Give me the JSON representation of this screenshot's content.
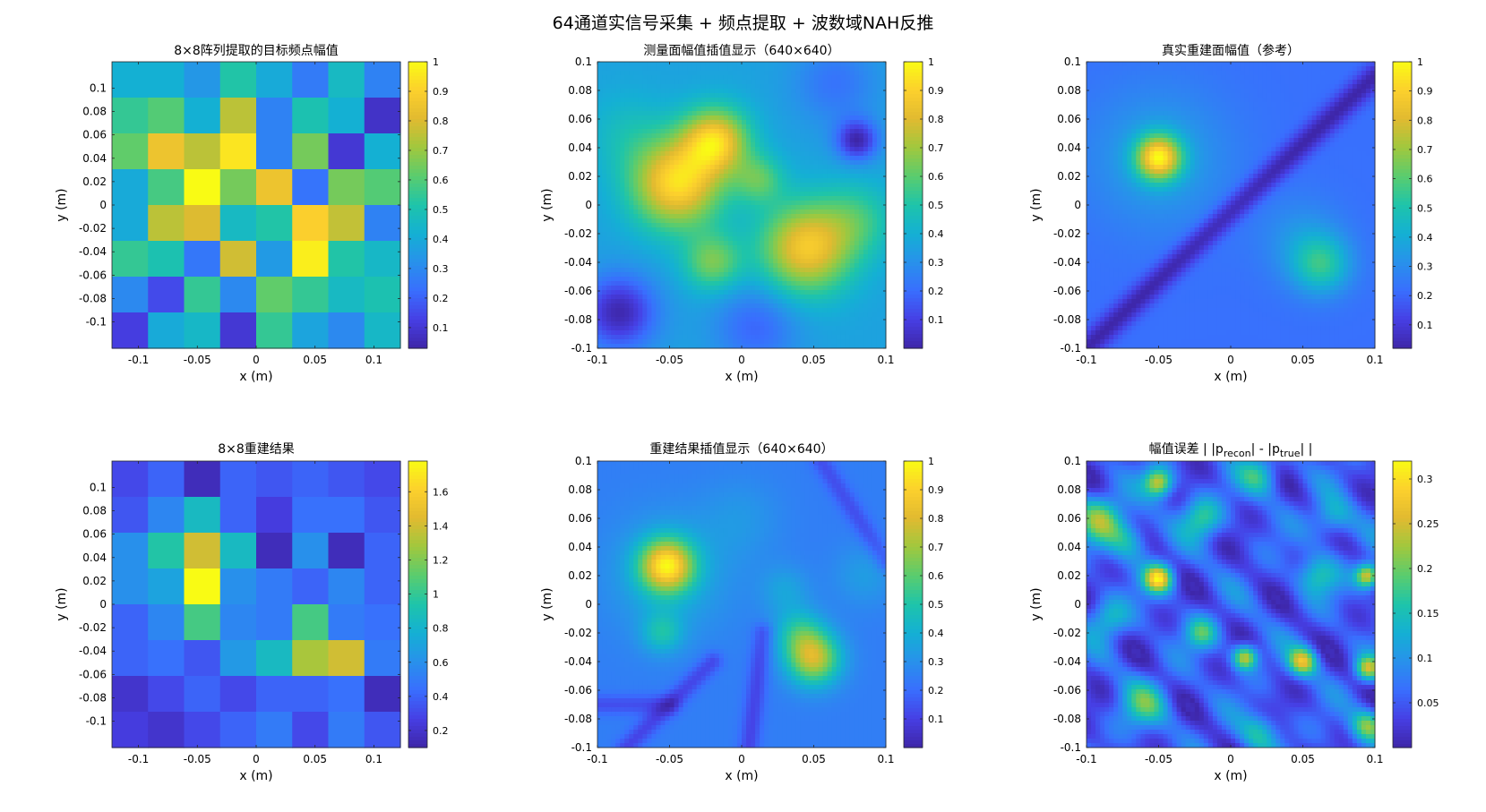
{
  "figure": {
    "suptitle": "64通道实信号采集 + 频点提取 + 波数域NAH反推"
  },
  "chart_data": [
    {
      "type": "heatmap",
      "id": "p1",
      "title": "8×8阵列提取的目标频点幅值",
      "xlabel": "x (m)",
      "ylabel": "y (m)",
      "xlim": [
        -0.1225,
        0.1225
      ],
      "ylim": [
        -0.1225,
        0.1225
      ],
      "xticks": [
        "-0.1",
        "-0.05",
        "0",
        "0.05",
        "0.1"
      ],
      "xtick_values": [
        -0.1,
        -0.05,
        0,
        0.05,
        0.1
      ],
      "yticks": [
        "0.1",
        "0.08",
        "0.06",
        "0.04",
        "0.02",
        "0",
        "-0.02",
        "-0.04",
        "-0.06",
        "-0.08",
        "-0.1"
      ],
      "ytick_values": [
        0.1,
        0.08,
        0.06,
        0.04,
        0.02,
        0,
        -0.02,
        -0.04,
        -0.06,
        -0.08,
        -0.1
      ],
      "colorbar": {
        "min": 0.03,
        "max": 1.0,
        "ticks": [
          "1",
          "0.9",
          "0.8",
          "0.7",
          "0.6",
          "0.5",
          "0.4",
          "0.3",
          "0.2",
          "0.1"
        ],
        "tick_values": [
          1,
          0.9,
          0.8,
          0.7,
          0.6,
          0.5,
          0.4,
          0.3,
          0.2,
          0.1
        ]
      },
      "rows_top_to_bottom": [
        [
          0.42,
          0.42,
          0.34,
          0.52,
          0.4,
          0.26,
          0.46,
          0.28
        ],
        [
          0.55,
          0.6,
          0.42,
          0.75,
          0.28,
          0.5,
          0.42,
          0.08
        ],
        [
          0.62,
          0.85,
          0.75,
          0.95,
          0.28,
          0.65,
          0.1,
          0.42
        ],
        [
          0.4,
          0.58,
          1.0,
          0.65,
          0.85,
          0.24,
          0.65,
          0.6
        ],
        [
          0.4,
          0.75,
          0.8,
          0.46,
          0.52,
          0.9,
          0.76,
          0.28
        ],
        [
          0.55,
          0.5,
          0.25,
          0.78,
          0.35,
          0.97,
          0.52,
          0.45
        ],
        [
          0.3,
          0.15,
          0.55,
          0.3,
          0.62,
          0.55,
          0.46,
          0.5
        ],
        [
          0.12,
          0.4,
          0.45,
          0.1,
          0.55,
          0.38,
          0.3,
          0.45
        ]
      ]
    },
    {
      "type": "heatmap",
      "id": "p2",
      "title": "测量面幅值插值显示（640×640）",
      "xlabel": "x (m)",
      "ylabel": "y (m)",
      "xlim": [
        -0.1,
        0.1
      ],
      "ylim": [
        -0.1,
        0.1
      ],
      "xticks": [
        "-0.1",
        "-0.05",
        "0",
        "0.05",
        "0.1"
      ],
      "xtick_values": [
        -0.1,
        -0.05,
        0,
        0.05,
        0.1
      ],
      "yticks": [
        "0.1",
        "0.08",
        "0.06",
        "0.04",
        "0.02",
        "0",
        "-0.02",
        "-0.04",
        "-0.06",
        "-0.08",
        "-0.1"
      ],
      "ytick_values": [
        0.1,
        0.08,
        0.06,
        0.04,
        0.02,
        0,
        -0.02,
        -0.04,
        -0.06,
        -0.08,
        -0.1
      ],
      "colorbar": {
        "min": 0.0,
        "max": 1.0,
        "ticks": [
          "1",
          "0.9",
          "0.8",
          "0.7",
          "0.6",
          "0.5",
          "0.4",
          "0.3",
          "0.2",
          "0.1"
        ],
        "tick_values": [
          1,
          0.9,
          0.8,
          0.7,
          0.6,
          0.5,
          0.4,
          0.3,
          0.2,
          0.1
        ]
      },
      "field": {
        "base": 0.45,
        "blobs": [
          [
            -0.045,
            0.015,
            0.022,
            0.5
          ],
          [
            -0.018,
            0.045,
            0.016,
            0.45
          ],
          [
            0.045,
            -0.03,
            0.022,
            0.45
          ],
          [
            0.08,
            0.045,
            0.01,
            -0.3
          ],
          [
            -0.085,
            -0.075,
            0.018,
            -0.3
          ],
          [
            0.012,
            0.018,
            0.012,
            0.2
          ],
          [
            -0.02,
            -0.04,
            0.014,
            0.25
          ],
          [
            0.08,
            -0.01,
            0.018,
            0.15
          ],
          [
            0.01,
            -0.085,
            0.02,
            -0.15
          ],
          [
            0.065,
            0.085,
            0.02,
            -0.12
          ],
          [
            -0.08,
            0.05,
            0.02,
            0.08
          ]
        ]
      }
    },
    {
      "type": "heatmap",
      "id": "p3",
      "title": "真实重建面幅值（参考）",
      "xlabel": "x (m)",
      "ylabel": "y (m)",
      "xlim": [
        -0.1,
        0.1
      ],
      "ylim": [
        -0.1,
        0.1
      ],
      "xticks": [
        "-0.1",
        "-0.05",
        "0",
        "0.05",
        "0.1"
      ],
      "xtick_values": [
        -0.1,
        -0.05,
        0,
        0.05,
        0.1
      ],
      "yticks": [
        "0.1",
        "0.08",
        "0.06",
        "0.04",
        "0.02",
        "0",
        "-0.02",
        "-0.04",
        "-0.06",
        "-0.08",
        "-0.1"
      ],
      "ytick_values": [
        0.1,
        0.08,
        0.06,
        0.04,
        0.02,
        0,
        -0.02,
        -0.04,
        -0.06,
        -0.08,
        -0.1
      ],
      "colorbar": {
        "min": 0.02,
        "max": 1.0,
        "ticks": [
          "1",
          "0.9",
          "0.8",
          "0.7",
          "0.6",
          "0.5",
          "0.4",
          "0.3",
          "0.2",
          "0.1"
        ],
        "tick_values": [
          1,
          0.9,
          0.8,
          0.7,
          0.6,
          0.5,
          0.4,
          0.3,
          0.2,
          0.1
        ]
      },
      "field": {
        "base": 0.25,
        "blobs": [
          [
            -0.05,
            0.033,
            0.011,
            0.7
          ],
          [
            -0.05,
            0.033,
            0.035,
            0.15
          ],
          [
            0.063,
            -0.042,
            0.014,
            0.3
          ],
          [
            0.05,
            -0.025,
            0.02,
            0.12
          ]
        ],
        "valleys": [
          [
            -0.1,
            -0.1,
            0.1,
            0.09,
            0.006,
            0.22
          ]
        ]
      }
    },
    {
      "type": "heatmap",
      "id": "p4",
      "title": "8×8重建结果",
      "xlabel": "x (m)",
      "ylabel": "y (m)",
      "xlim": [
        -0.1225,
        0.1225
      ],
      "ylim": [
        -0.1225,
        0.1225
      ],
      "xticks": [
        "-0.1",
        "-0.05",
        "0",
        "0.05",
        "0.1"
      ],
      "xtick_values": [
        -0.1,
        -0.05,
        0,
        0.05,
        0.1
      ],
      "yticks": [
        "0.1",
        "0.08",
        "0.06",
        "0.04",
        "0.02",
        "0",
        "-0.02",
        "-0.04",
        "-0.06",
        "-0.08",
        "-0.1"
      ],
      "ytick_values": [
        0.1,
        0.08,
        0.06,
        0.04,
        0.02,
        0,
        -0.02,
        -0.04,
        -0.06,
        -0.08,
        -0.1
      ],
      "colorbar": {
        "min": 0.1,
        "max": 1.78,
        "ticks": [
          "1.6",
          "1.4",
          "1.2",
          "1",
          "0.8",
          "0.6",
          "0.4",
          "0.2"
        ],
        "tick_values": [
          1.6,
          1.4,
          1.2,
          1.0,
          0.8,
          0.6,
          0.4,
          0.2
        ]
      },
      "rows_top_to_bottom": [
        [
          0.3,
          0.4,
          0.15,
          0.4,
          0.35,
          0.4,
          0.35,
          0.3
        ],
        [
          0.35,
          0.55,
          0.85,
          0.4,
          0.25,
          0.45,
          0.45,
          0.35
        ],
        [
          0.6,
          0.95,
          1.4,
          0.85,
          0.15,
          0.6,
          0.15,
          0.4
        ],
        [
          0.6,
          0.7,
          1.78,
          0.6,
          0.5,
          0.4,
          0.55,
          0.4
        ],
        [
          0.4,
          0.55,
          1.05,
          0.55,
          0.5,
          1.05,
          0.5,
          0.45
        ],
        [
          0.4,
          0.45,
          0.35,
          0.65,
          0.85,
          1.3,
          1.4,
          0.5
        ],
        [
          0.2,
          0.3,
          0.4,
          0.3,
          0.4,
          0.4,
          0.45,
          0.15
        ],
        [
          0.25,
          0.2,
          0.3,
          0.4,
          0.5,
          0.3,
          0.5,
          0.35
        ]
      ]
    },
    {
      "type": "heatmap",
      "id": "p5",
      "title": "重建结果插值显示（640×640）",
      "xlabel": "x (m)",
      "ylabel": "y (m)",
      "xlim": [
        -0.1,
        0.1
      ],
      "ylim": [
        -0.1,
        0.1
      ],
      "xticks": [
        "-0.1",
        "-0.05",
        "0",
        "0.05",
        "0.1"
      ],
      "xtick_values": [
        -0.1,
        -0.05,
        0,
        0.05,
        0.1
      ],
      "yticks": [
        "0.1",
        "0.08",
        "0.06",
        "0.04",
        "0.02",
        "0",
        "-0.02",
        "-0.04",
        "-0.06",
        "-0.08",
        "-0.1"
      ],
      "ytick_values": [
        0.1,
        0.08,
        0.06,
        0.04,
        0.02,
        0,
        -0.02,
        -0.04,
        -0.06,
        -0.08,
        -0.1
      ],
      "colorbar": {
        "min": 0.0,
        "max": 1.0,
        "ticks": [
          "1",
          "0.9",
          "0.8",
          "0.7",
          "0.6",
          "0.5",
          "0.4",
          "0.3",
          "0.2",
          "0.1"
        ],
        "tick_values": [
          1,
          0.9,
          0.8,
          0.7,
          0.6,
          0.5,
          0.4,
          0.3,
          0.2,
          0.1
        ]
      },
      "field": {
        "base": 0.28,
        "blobs": [
          [
            -0.052,
            0.027,
            0.013,
            0.55
          ],
          [
            -0.05,
            0.02,
            0.03,
            0.12
          ],
          [
            0.05,
            -0.038,
            0.013,
            0.45
          ],
          [
            0.04,
            -0.02,
            0.012,
            0.2
          ],
          [
            -0.055,
            -0.02,
            0.01,
            0.18
          ],
          [
            0.0,
            0.06,
            0.02,
            0.06
          ],
          [
            0.03,
            0.01,
            0.012,
            0.1
          ],
          [
            0.085,
            0.02,
            0.015,
            0.08
          ]
        ],
        "valleys": [
          [
            -0.08,
            -0.1,
            -0.02,
            -0.04,
            0.005,
            0.12
          ],
          [
            0.005,
            -0.1,
            0.015,
            -0.02,
            0.005,
            0.12
          ],
          [
            0.055,
            0.1,
            0.1,
            0.03,
            0.005,
            0.1
          ],
          [
            -0.1,
            -0.07,
            -0.05,
            -0.07,
            0.005,
            0.1
          ]
        ]
      }
    },
    {
      "type": "heatmap",
      "id": "p6",
      "title": "幅值误差 | |p_recon| - |p_true| |",
      "title_parts": {
        "pre": "幅值误差 | |p",
        "sub1": "recon",
        "mid": "| - |p",
        "sub2": "true",
        "post": "| |"
      },
      "xlabel": "x (m)",
      "ylabel": "y (m)",
      "xlim": [
        -0.1,
        0.1
      ],
      "ylim": [
        -0.1,
        0.1
      ],
      "xticks": [
        "-0.1",
        "-0.05",
        "0",
        "0.05",
        "0.1"
      ],
      "xtick_values": [
        -0.1,
        -0.05,
        0,
        0.05,
        0.1
      ],
      "yticks": [
        "0.1",
        "0.08",
        "0.06",
        "0.04",
        "0.02",
        "0",
        "-0.02",
        "-0.04",
        "-0.06",
        "-0.08",
        "-0.1"
      ],
      "ytick_values": [
        0.1,
        0.08,
        0.06,
        0.04,
        0.02,
        0,
        -0.02,
        -0.04,
        -0.06,
        -0.08,
        -0.1
      ],
      "colorbar": {
        "min": 0.0,
        "max": 0.32,
        "ticks": [
          "0.3",
          "0.25",
          "0.2",
          "0.15",
          "0.1",
          "0.05"
        ],
        "tick_values": [
          0.3,
          0.25,
          0.2,
          0.15,
          0.1,
          0.05
        ]
      },
      "field": {
        "mode": "error",
        "base": 0.0,
        "blobs": [
          [
            -0.05,
            0.018,
            0.007,
            0.3
          ],
          [
            -0.05,
            0.085,
            0.007,
            0.25
          ],
          [
            0.05,
            -0.04,
            0.007,
            0.25
          ],
          [
            0.095,
            0.02,
            0.006,
            0.28
          ],
          [
            0.095,
            -0.045,
            0.006,
            0.22
          ],
          [
            0.01,
            -0.037,
            0.006,
            0.25
          ],
          [
            -0.09,
            0.06,
            0.012,
            0.18
          ],
          [
            -0.07,
            0.045,
            0.01,
            0.12
          ],
          [
            -0.02,
            0.06,
            0.01,
            0.15
          ],
          [
            0.07,
            0.06,
            0.01,
            0.12
          ],
          [
            -0.06,
            -0.07,
            0.012,
            0.14
          ],
          [
            0.02,
            -0.09,
            0.01,
            0.12
          ],
          [
            0.095,
            -0.085,
            0.008,
            0.2
          ],
          [
            -0.02,
            -0.02,
            0.008,
            0.15
          ],
          [
            0.06,
            0.02,
            0.01,
            0.13
          ],
          [
            -0.085,
            -0.01,
            0.01,
            0.12
          ],
          [
            0.02,
            0.09,
            0.01,
            0.14
          ]
        ]
      }
    }
  ]
}
